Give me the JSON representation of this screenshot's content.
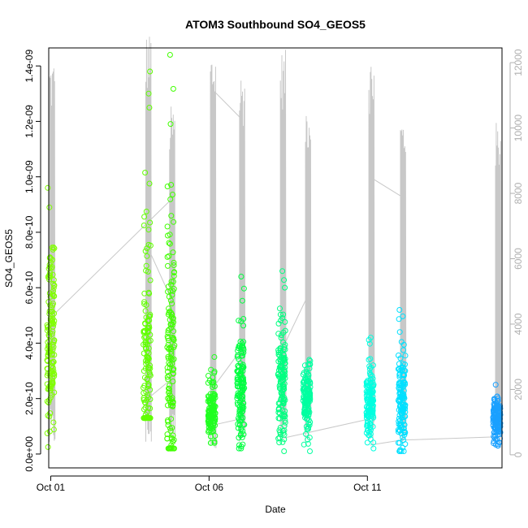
{
  "chart_data": {
    "type": "scatter",
    "title": "ATOM3 Southbound SO4_GEOS5",
    "xlabel": "Date",
    "ylabel": "SO4_GEOS5",
    "x_axis": {
      "type": "date",
      "range": [
        "2017-09-30T22:30",
        "2017-10-15T06:00"
      ],
      "ticks": [
        {
          "date": "2017-10-01T00:00",
          "label": "Oct 01"
        },
        {
          "date": "2017-10-06T00:00",
          "label": "Oct 06"
        },
        {
          "date": "2017-10-11T00:00",
          "label": "Oct 11"
        }
      ]
    },
    "y_axis": {
      "range": [
        -5e-11,
        1.465e-09
      ],
      "ticks": [
        {
          "value": 0,
          "label": "0.0e+00"
        },
        {
          "value": 2e-10,
          "label": "2.0e-10"
        },
        {
          "value": 4e-10,
          "label": "4.0e-10"
        },
        {
          "value": 6e-10,
          "label": "6.0e-10"
        },
        {
          "value": 8e-10,
          "label": "8.0e-10"
        },
        {
          "value": 1e-09,
          "label": "1.0e-09"
        },
        {
          "value": 1.2e-09,
          "label": "1.2e-09"
        },
        {
          "value": 1.4e-09,
          "label": "1.4e-09"
        }
      ]
    },
    "y2_axis": {
      "color": "#b0b0b0",
      "range": [
        -400,
        12450
      ],
      "ticks": [
        {
          "value": 0,
          "label": "0"
        },
        {
          "value": 2000,
          "label": "2000"
        },
        {
          "value": 4000,
          "label": "4000"
        },
        {
          "value": 6000,
          "label": "6000"
        },
        {
          "value": 8000,
          "label": "8000"
        },
        {
          "value": 10000,
          "label": "10000"
        },
        {
          "value": 12000,
          "label": "12000"
        }
      ]
    },
    "grid": false,
    "marker": "open-circle",
    "flights": [
      {
        "date": "2017-10-01T00:00",
        "so4_min": 2.5e-11,
        "so4_max": 9.6e-10,
        "so4_center": 4.2e-10,
        "color": "#80ff00",
        "alt_max": 12200
      },
      {
        "date": "2017-10-04T01:00",
        "so4_min": 1.3e-10,
        "so4_max": 1.38e-09,
        "so4_center": 2.8e-10,
        "color": "#60ff00",
        "alt_max": 12950
      },
      {
        "date": "2017-10-04T19:00",
        "so4_min": 2e-11,
        "so4_max": 1.44e-09,
        "so4_center": 2.9e-10,
        "color": "#40ff00",
        "alt_max": 10700
      },
      {
        "date": "2017-10-06T02:00",
        "so4_min": 4e-11,
        "so4_max": 3.5e-10,
        "so4_center": 1.4e-10,
        "color": "#20ff20",
        "alt_max": 12500
      },
      {
        "date": "2017-10-07T00:00",
        "so4_min": 2e-11,
        "so4_max": 6.4e-10,
        "so4_center": 2.4e-10,
        "color": "#00ff40",
        "alt_max": 11800
      },
      {
        "date": "2017-10-08T07:00",
        "so4_min": 1e-11,
        "so4_max": 6.6e-10,
        "so4_center": 2.6e-10,
        "color": "#00ff80",
        "alt_max": 12400
      },
      {
        "date": "2017-10-09T02:00",
        "so4_min": 1e-11,
        "so4_max": 3.4e-10,
        "so4_center": 2.1e-10,
        "color": "#00ffa0",
        "alt_max": 10900
      },
      {
        "date": "2017-10-11T02:00",
        "so4_min": 2e-11,
        "so4_max": 4.2e-10,
        "so4_center": 1.7e-10,
        "color": "#00ffe0",
        "alt_max": 12250
      },
      {
        "date": "2017-10-12T02:00",
        "so4_min": 1e-11,
        "so4_max": 5.2e-10,
        "so4_center": 1.7e-10,
        "color": "#00e0ff",
        "alt_max": 10450
      },
      {
        "date": "2017-10-15T02:00",
        "so4_min": 3e-11,
        "so4_max": 2.5e-10,
        "so4_center": 1.2e-10,
        "color": "#1aa0ff",
        "alt_max": 10200
      }
    ],
    "altitude_series": {
      "name": "",
      "color": "#c8c8c8"
    }
  }
}
